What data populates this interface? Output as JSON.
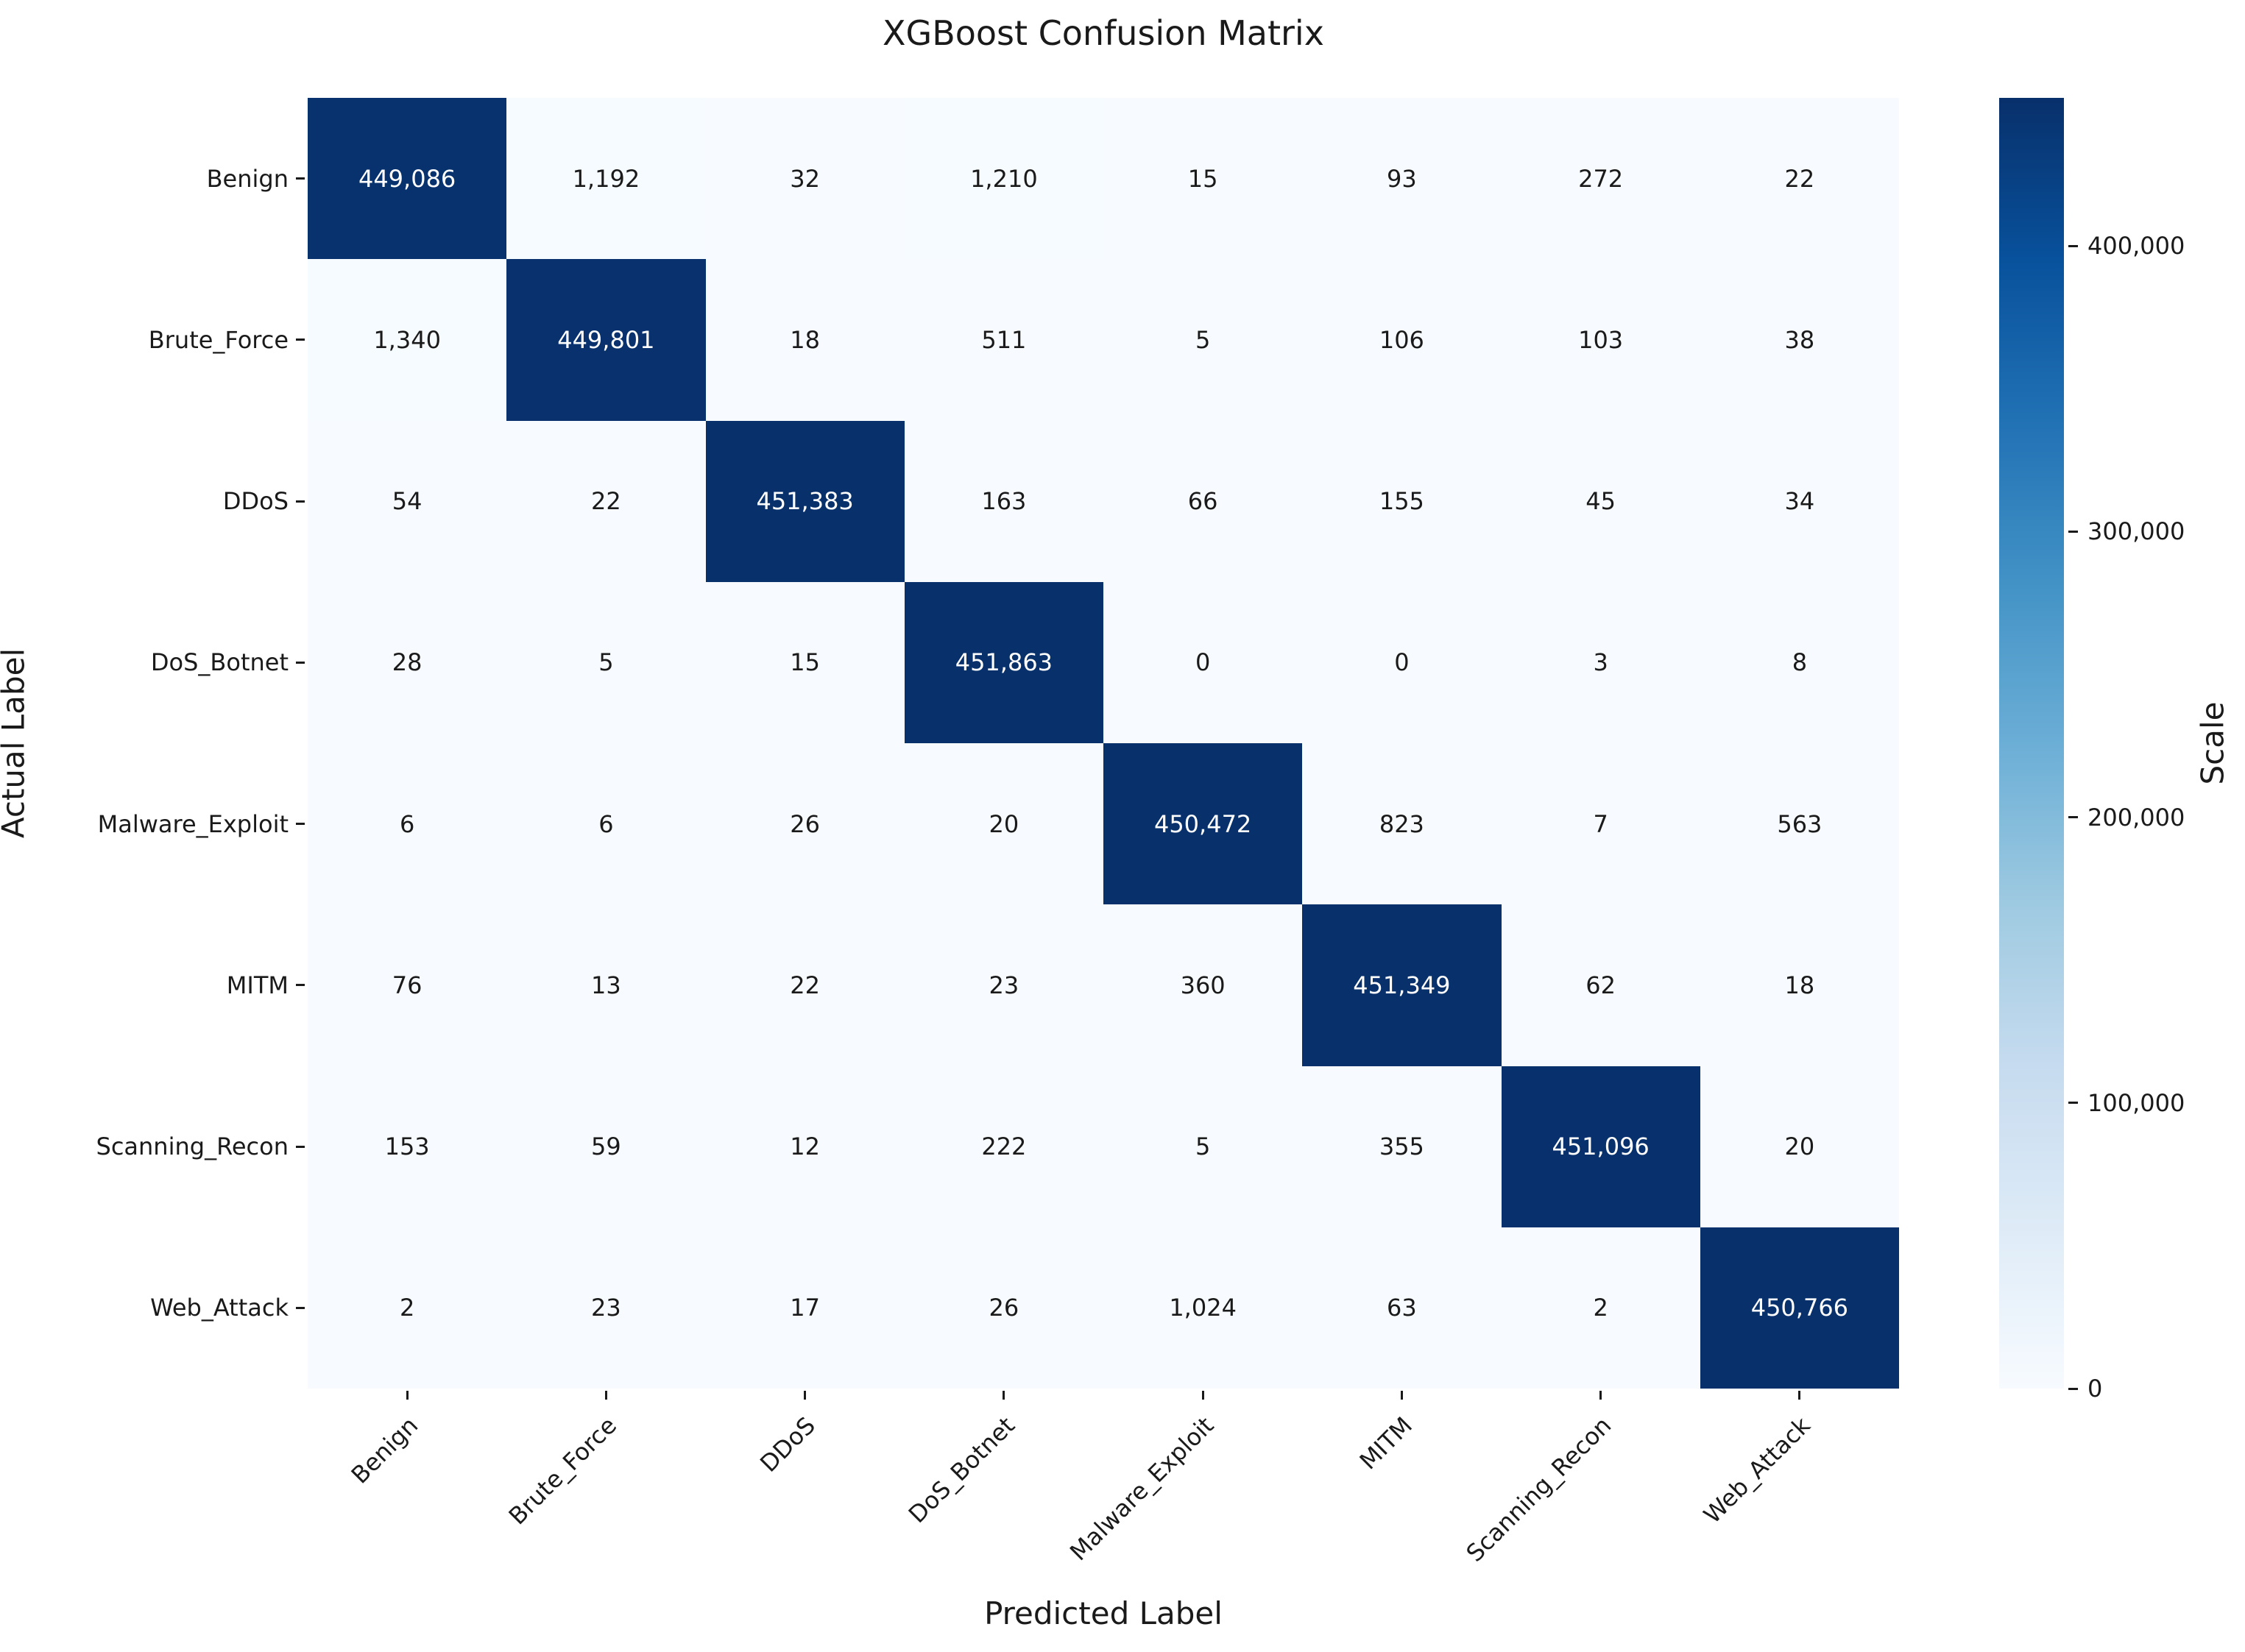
{
  "chart_data": {
    "type": "heatmap",
    "title": "XGBoost Confusion Matrix",
    "xlabel": "Predicted Label",
    "ylabel": "Actual Label",
    "colorbar_label": "Scale",
    "categories": [
      "Benign",
      "Brute_Force",
      "DDoS",
      "DoS_Botnet",
      "Malware_Exploit",
      "MITM",
      "Scanning_Recon",
      "Web_Attack"
    ],
    "rows": [
      [
        449086,
        1192,
        32,
        1210,
        15,
        93,
        272,
        22
      ],
      [
        1340,
        449801,
        18,
        511,
        5,
        106,
        103,
        38
      ],
      [
        54,
        22,
        451383,
        163,
        66,
        155,
        45,
        34
      ],
      [
        28,
        5,
        15,
        451863,
        0,
        0,
        3,
        8
      ],
      [
        6,
        6,
        26,
        20,
        450472,
        823,
        7,
        563
      ],
      [
        76,
        13,
        22,
        23,
        360,
        451349,
        62,
        18
      ],
      [
        153,
        59,
        12,
        222,
        5,
        355,
        451096,
        20
      ],
      [
        2,
        23,
        17,
        26,
        1024,
        63,
        2,
        450766
      ]
    ],
    "vmin": 0,
    "vmax": 451863,
    "colorbar_ticks": [
      0,
      100000,
      200000,
      300000,
      400000
    ],
    "colorbar_tick_labels": [
      "0",
      "100,000",
      "200,000",
      "300,000",
      "400,000"
    ],
    "colormap": "Blues",
    "colormap_stops": [
      "#f7fbff",
      "#deebf7",
      "#c6dbef",
      "#9ecae1",
      "#6baed6",
      "#4292c6",
      "#2171b5",
      "#08519c",
      "#08306b"
    ],
    "annotation_color_dark_cells": "#ffffff",
    "annotation_color_light_cells": "#1a1a1a",
    "legend_position": "right",
    "grid": false
  }
}
